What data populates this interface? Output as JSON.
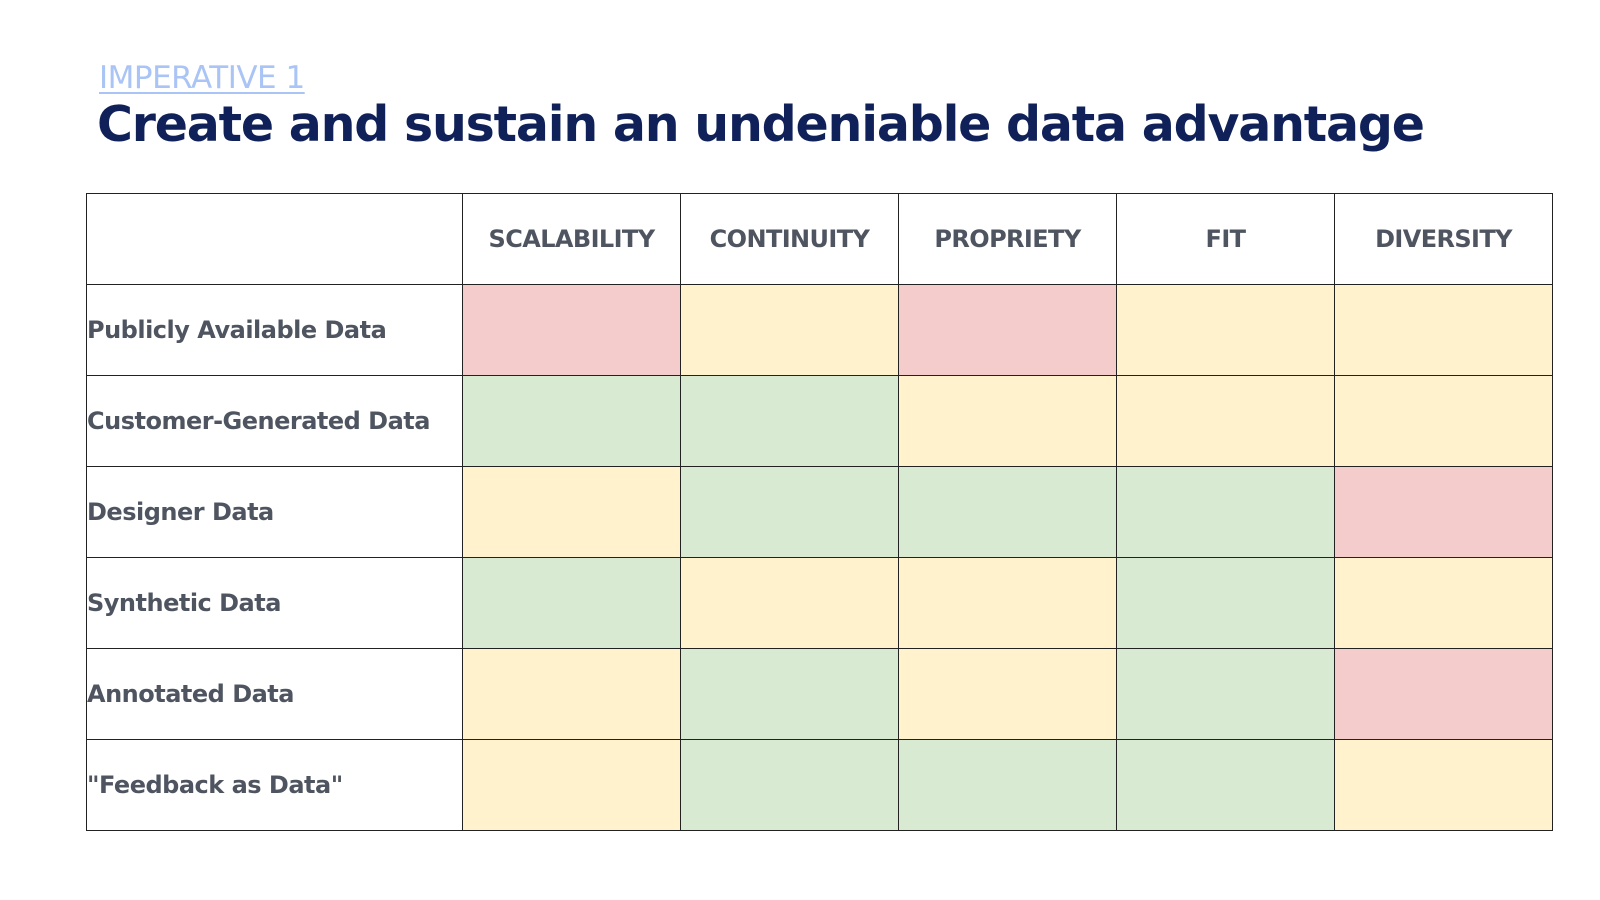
{
  "header": {
    "eyebrow": "IMPERATIVE 1",
    "title": "Create and sustain an undeniable data advantage"
  },
  "matrix": {
    "columns": [
      "SCALABILITY",
      "CONTINUITY",
      "PROPRIETY",
      "FIT",
      "DIVERSITY"
    ],
    "rows": [
      {
        "label": "Publicly Available Data",
        "ratings": [
          "red",
          "yellow",
          "red",
          "yellow",
          "yellow"
        ]
      },
      {
        "label": "Customer-Generated Data",
        "ratings": [
          "green",
          "green",
          "yellow",
          "yellow",
          "yellow"
        ]
      },
      {
        "label": "Designer Data",
        "ratings": [
          "yellow",
          "green",
          "green",
          "green",
          "red"
        ]
      },
      {
        "label": "Synthetic Data",
        "ratings": [
          "green",
          "yellow",
          "yellow",
          "green",
          "yellow"
        ]
      },
      {
        "label": "Annotated Data",
        "ratings": [
          "yellow",
          "green",
          "yellow",
          "green",
          "red"
        ]
      },
      {
        "label": "\"Feedback as Data\"",
        "ratings": [
          "yellow",
          "green",
          "green",
          "green",
          "yellow"
        ]
      }
    ],
    "rating_colors": {
      "red": "#f4cccc",
      "yellow": "#fff2cc",
      "green": "#d9ead3"
    }
  }
}
